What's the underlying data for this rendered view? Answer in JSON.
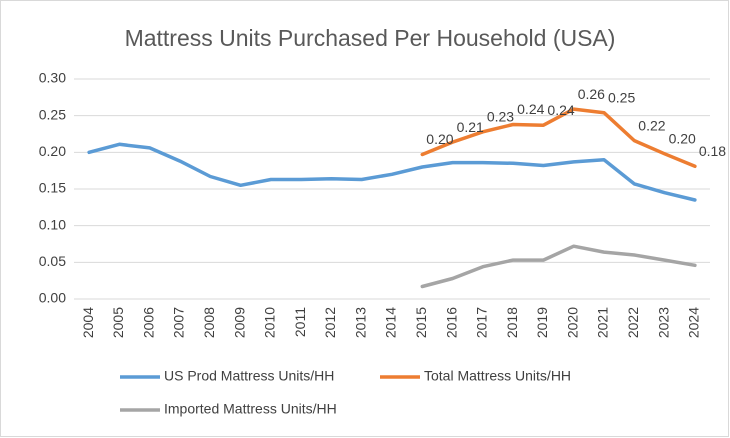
{
  "chart_data": {
    "type": "line",
    "title": "Mattress Units Purchased Per Household (USA)",
    "categories": [
      "2004",
      "2005",
      "2006",
      "2007",
      "2008",
      "2009",
      "2010",
      "2011",
      "2012",
      "2013",
      "2014",
      "2015",
      "2016",
      "2017",
      "2018",
      "2019",
      "2020",
      "2021",
      "2022",
      "2023",
      "2024"
    ],
    "series": [
      {
        "name": "US Prod Mattress Units/HH",
        "color": "#5b9bd5",
        "values": [
          0.2,
          0.211,
          0.206,
          0.188,
          0.167,
          0.155,
          0.163,
          0.163,
          0.164,
          0.163,
          0.17,
          0.18,
          0.186,
          0.186,
          0.185,
          0.182,
          0.187,
          0.19,
          0.157,
          0.145,
          0.135
        ]
      },
      {
        "name": "Total Mattress Units/HH",
        "color": "#ed7d31",
        "values": [
          null,
          null,
          null,
          null,
          null,
          null,
          null,
          null,
          null,
          null,
          null,
          0.197,
          0.214,
          0.228,
          0.238,
          0.237,
          0.259,
          0.254,
          0.216,
          0.198,
          0.181
        ],
        "value_labels": [
          null,
          null,
          null,
          null,
          null,
          null,
          null,
          null,
          null,
          null,
          null,
          "0.20",
          "0.21",
          "0.23",
          "0.24",
          "0.24",
          "0.26",
          "0.25",
          "0.22",
          "0.20",
          "0.18"
        ]
      },
      {
        "name": "Imported Mattress Units/HH",
        "color": "#a5a5a5",
        "values": [
          null,
          null,
          null,
          null,
          null,
          null,
          null,
          null,
          null,
          null,
          null,
          0.017,
          0.028,
          0.044,
          0.053,
          0.053,
          0.072,
          0.064,
          0.06,
          0.053,
          0.046
        ]
      }
    ],
    "ylim": [
      0,
      0.3
    ],
    "yticks": [
      {
        "value": 0,
        "label": "0.00"
      },
      {
        "value": 0.05,
        "label": "0.05"
      },
      {
        "value": 0.1,
        "label": "0.10"
      },
      {
        "value": 0.15,
        "label": "0.15"
      },
      {
        "value": 0.2,
        "label": "0.20"
      },
      {
        "value": 0.25,
        "label": "0.25"
      },
      {
        "value": 0.3,
        "label": "0.30"
      }
    ],
    "grid": true
  }
}
